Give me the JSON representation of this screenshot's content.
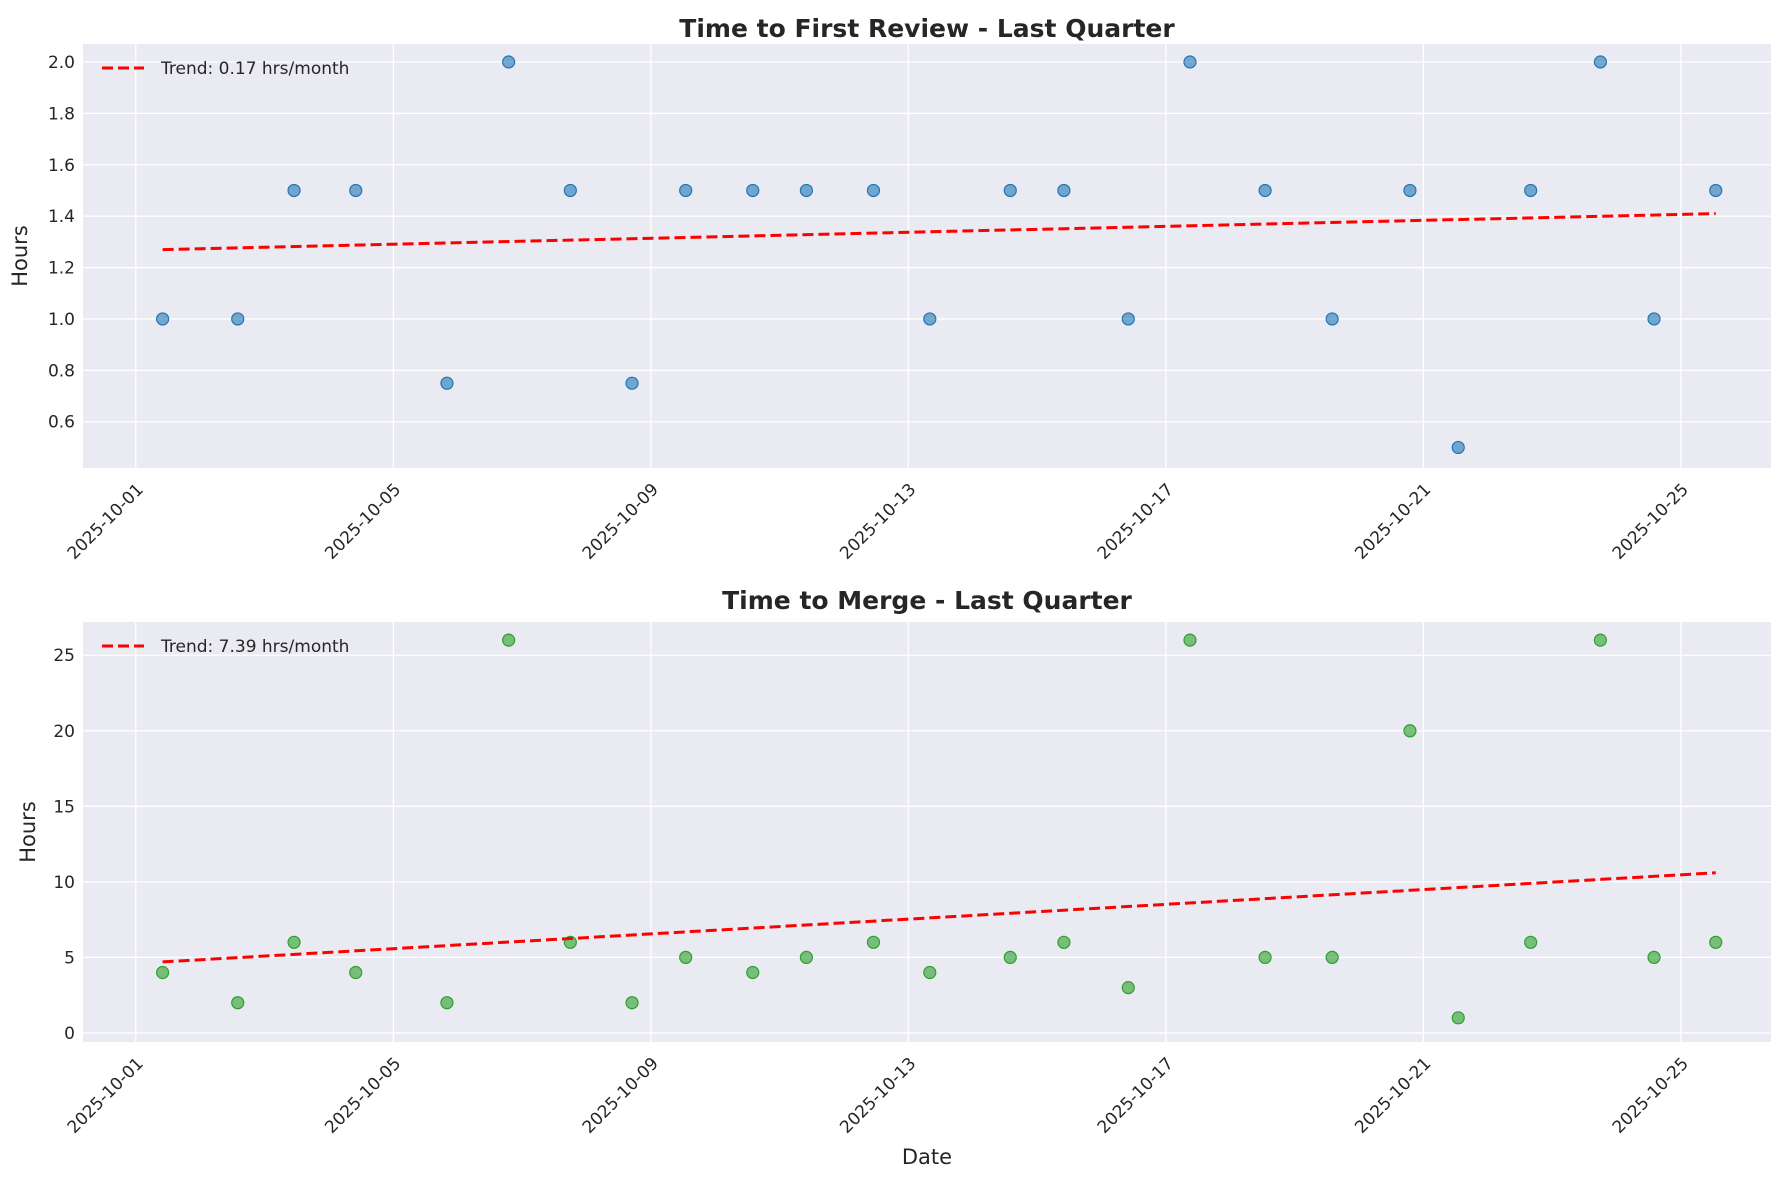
{
  "chart_data": [
    {
      "type": "scatter",
      "title": "Time to First Review - Last Quarter",
      "xlabel": "",
      "ylabel": "Hours",
      "ylim": [
        0.42,
        2.07
      ],
      "xlim": [
        "2025-10-00",
        "2025-10-26"
      ],
      "yticks": [
        "0.6",
        "0.8",
        "1.0",
        "1.2",
        "1.4",
        "1.6",
        "1.8",
        "2.0"
      ],
      "xticks": [
        "2025-10-01",
        "2025-10-05",
        "2025-10-09",
        "2025-10-13",
        "2025-10-17",
        "2025-10-21",
        "2025-10-25"
      ],
      "grid": true,
      "legend_position": "top-left",
      "series": [
        {
          "kind": "scatter",
          "color": "#1f77b4",
          "x": [
            "2025-10-01T10:00",
            "2025-10-02T14:00",
            "2025-10-03T11:00",
            "2025-10-04T10:00",
            "2025-10-05T20:00",
            "2025-10-06T19:00",
            "2025-10-07T18:00",
            "2025-10-08T17:00",
            "2025-10-09T13:00",
            "2025-10-10T14:00",
            "2025-10-11T10:00",
            "2025-10-12T11:00",
            "2025-10-13T08:00",
            "2025-10-14T14:00",
            "2025-10-15T10:00",
            "2025-10-16T10:00",
            "2025-10-17T09:00",
            "2025-10-18T13:00",
            "2025-10-19T14:00",
            "2025-10-20T19:00",
            "2025-10-21T13:00",
            "2025-10-22T16:00",
            "2025-10-23T18:00",
            "2025-10-24T14:00",
            "2025-10-25T13:00"
          ],
          "y": [
            1.0,
            1.0,
            1.5,
            1.5,
            0.75,
            2.0,
            1.5,
            0.75,
            1.5,
            1.5,
            1.5,
            1.5,
            1.0,
            1.5,
            1.5,
            1.0,
            2.0,
            1.5,
            1.0,
            1.5,
            0.5,
            1.5,
            2.0,
            1.0,
            1.5
          ]
        },
        {
          "kind": "line",
          "name": "Trend: 0.17 hrs/month",
          "color": "#ff0000",
          "x": [
            "2025-10-01T10:00",
            "2025-10-25T13:00"
          ],
          "y": [
            1.27,
            1.41
          ]
        }
      ]
    },
    {
      "type": "scatter",
      "title": "Time to Merge - Last Quarter",
      "xlabel": "Date",
      "ylabel": "Hours",
      "ylim": [
        -0.6,
        27.2
      ],
      "xlim": [
        "2025-10-00",
        "2025-10-26"
      ],
      "yticks": [
        "0",
        "5",
        "10",
        "15",
        "20",
        "25"
      ],
      "xticks": [
        "2025-10-01",
        "2025-10-05",
        "2025-10-09",
        "2025-10-13",
        "2025-10-17",
        "2025-10-21",
        "2025-10-25"
      ],
      "grid": true,
      "legend_position": "top-left",
      "series": [
        {
          "kind": "scatter",
          "color": "#2ca02c",
          "x": [
            "2025-10-01T10:00",
            "2025-10-02T14:00",
            "2025-10-03T11:00",
            "2025-10-04T10:00",
            "2025-10-05T20:00",
            "2025-10-06T19:00",
            "2025-10-07T18:00",
            "2025-10-08T17:00",
            "2025-10-09T13:00",
            "2025-10-10T14:00",
            "2025-10-11T10:00",
            "2025-10-12T11:00",
            "2025-10-13T08:00",
            "2025-10-14T14:00",
            "2025-10-15T10:00",
            "2025-10-16T10:00",
            "2025-10-17T09:00",
            "2025-10-18T13:00",
            "2025-10-19T14:00",
            "2025-10-20T19:00",
            "2025-10-21T13:00",
            "2025-10-22T16:00",
            "2025-10-23T18:00",
            "2025-10-24T14:00",
            "2025-10-25T13:00"
          ],
          "y": [
            4,
            2,
            6,
            4,
            2,
            26,
            6,
            2,
            5,
            4,
            5,
            6,
            4,
            5,
            6,
            3,
            26,
            5,
            5,
            20,
            1,
            6,
            26,
            5,
            6
          ]
        },
        {
          "kind": "line",
          "name": "Trend: 7.39 hrs/month",
          "color": "#ff0000",
          "x": [
            "2025-10-01T10:00",
            "2025-10-25T13:00"
          ],
          "y": [
            4.7,
            10.6
          ]
        }
      ]
    }
  ]
}
